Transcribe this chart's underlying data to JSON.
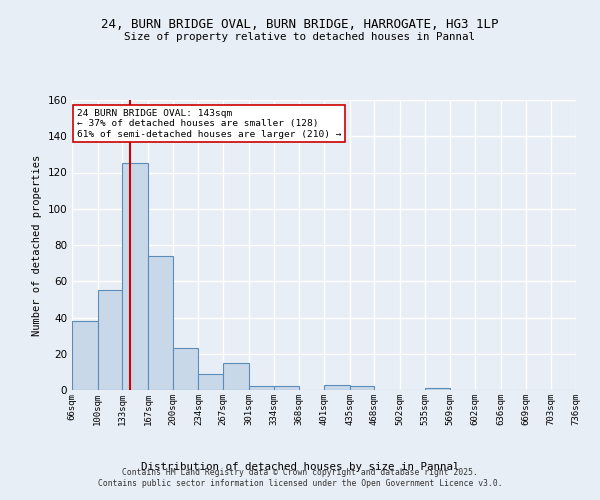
{
  "title1": "24, BURN BRIDGE OVAL, BURN BRIDGE, HARROGATE, HG3 1LP",
  "title2": "Size of property relative to detached houses in Pannal",
  "xlabel": "Distribution of detached houses by size in Pannal",
  "ylabel": "Number of detached properties",
  "bin_edges": [
    66,
    100,
    133,
    167,
    200,
    234,
    267,
    301,
    334,
    368,
    401,
    435,
    468,
    502,
    535,
    569,
    602,
    636,
    669,
    703,
    736
  ],
  "categories": [
    "66sqm",
    "100sqm",
    "133sqm",
    "167sqm",
    "200sqm",
    "234sqm",
    "267sqm",
    "301sqm",
    "334sqm",
    "368sqm",
    "401sqm",
    "435sqm",
    "468sqm",
    "502sqm",
    "535sqm",
    "569sqm",
    "602sqm",
    "636sqm",
    "669sqm",
    "703sqm",
    "736sqm"
  ],
  "heights": [
    38,
    55,
    125,
    74,
    23,
    9,
    15,
    2,
    2,
    0,
    3,
    2,
    0,
    0,
    1,
    0,
    0,
    0,
    0,
    0
  ],
  "bar_color": "#c8d8e8",
  "bar_edge_color": "#5b8db8",
  "vline_x": 143,
  "vline_color": "#cc0000",
  "ylim": [
    0,
    160
  ],
  "yticks": [
    0,
    20,
    40,
    60,
    80,
    100,
    120,
    140,
    160
  ],
  "annotation_text": "24 BURN BRIDGE OVAL: 143sqm\n← 37% of detached houses are smaller (128)\n61% of semi-detached houses are larger (210) →",
  "annotation_box_color": "#ffffff",
  "annotation_box_edge": "#cc0000",
  "footer1": "Contains HM Land Registry data © Crown copyright and database right 2025.",
  "footer2": "Contains public sector information licensed under the Open Government Licence v3.0.",
  "background_color": "#e8eef5",
  "grid_color": "#ffffff"
}
